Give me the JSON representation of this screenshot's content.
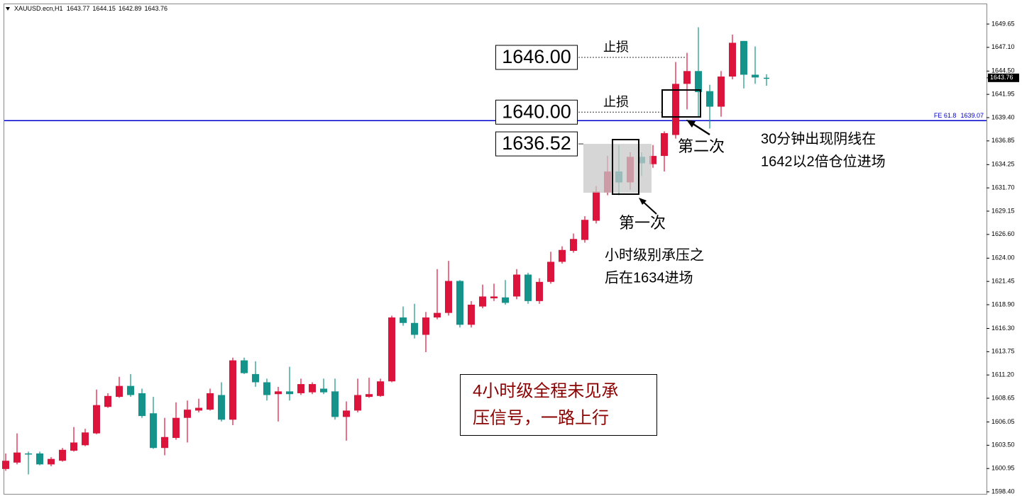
{
  "chart_data": {
    "type": "candlestick",
    "symbol": "XAUUSD.ecn,H1",
    "open": [
      1600.9,
      1601.6,
      1602.6,
      1602.6,
      1601.4,
      1601.8,
      1602.9,
      1603.5,
      1604.8,
      1607.7,
      1608.8,
      1610.0,
      1609.2,
      1607.0,
      1603.2,
      1604.3,
      1606.5,
      1607.3,
      1607.4,
      1609.0,
      1606.3,
      1612.8,
      1611.3,
      1610.4,
      1609.1,
      1609.4,
      1609.2,
      1609.3,
      1609.7,
      1609.4,
      1606.6,
      1607.3,
      1608.8,
      1608.9,
      1610.5,
      1617.5,
      1616.9,
      1615.6,
      1617.5,
      1618.0,
      1621.5,
      1616.7,
      1618.7,
      1619.6,
      1619.7,
      1619.8,
      1622.2,
      1619.3,
      1621.4,
      1623.6,
      1624.8,
      1626.0,
      1628.1,
      1631.2,
      1633.5,
      1632.3,
      1635.1,
      1634.3,
      1635.2,
      1637.5,
      1643.1,
      1644.5,
      1642.3,
      1640.6,
      1643.9,
      1647.8,
      1644.1,
      1643.77
    ],
    "high": [
      1602.6,
      1604.8,
      1602.8,
      1602.8,
      1602.2,
      1603.2,
      1605.5,
      1605.3,
      1609.6,
      1609.2,
      1611.0,
      1611.3,
      1609.7,
      1608.8,
      1606.5,
      1608.2,
      1608.4,
      1608.6,
      1609.7,
      1610.4,
      1613.1,
      1613.1,
      1612.7,
      1610.8,
      1609.9,
      1612.1,
      1610.8,
      1610.4,
      1610.8,
      1610.8,
      1608.3,
      1610.8,
      1610.9,
      1610.8,
      1617.7,
      1618.7,
      1619.0,
      1618.1,
      1622.8,
      1623.7,
      1621.6,
      1619.3,
      1621.1,
      1621.2,
      1621.6,
      1622.8,
      1622.4,
      1621.8,
      1624.7,
      1625.3,
      1626.7,
      1628.6,
      1631.9,
      1635.2,
      1636.4,
      1635.6,
      1635.6,
      1636.4,
      1637.9,
      1645.5,
      1646.5,
      1649.3,
      1643.0,
      1644.5,
      1648.5,
      1647.8,
      1647.2,
      1644.15
    ],
    "low": [
      1600.7,
      1601.4,
      1600.3,
      1601.3,
      1601.2,
      1601.7,
      1602.8,
      1603.4,
      1604.7,
      1607.6,
      1608.7,
      1608.8,
      1606.5,
      1603.1,
      1602.4,
      1604.1,
      1603.8,
      1607.1,
      1607.3,
      1606.1,
      1605.7,
      1611.3,
      1609.9,
      1608.4,
      1606.1,
      1608.4,
      1609.0,
      1609.1,
      1609.1,
      1606.3,
      1604.0,
      1607.1,
      1608.7,
      1608.8,
      1610.4,
      1616.6,
      1615.2,
      1613.7,
      1617.3,
      1617.7,
      1616.4,
      1616.4,
      1618.5,
      1619.3,
      1618.9,
      1619.5,
      1619.0,
      1619.0,
      1621.2,
      1623.4,
      1624.6,
      1625.7,
      1627.8,
      1630.9,
      1630.9,
      1631.5,
      1633.0,
      1633.9,
      1633.5,
      1637.1,
      1640.3,
      1639.5,
      1638.2,
      1639.5,
      1643.6,
      1642.6,
      1643.1,
      1642.89
    ],
    "close": [
      1601.8,
      1602.7,
      1602.5,
      1601.4,
      1602.0,
      1603.0,
      1603.8,
      1604.9,
      1607.9,
      1608.9,
      1610.0,
      1609.0,
      1606.7,
      1603.2,
      1604.4,
      1606.5,
      1607.4,
      1607.6,
      1609.2,
      1606.3,
      1612.8,
      1611.4,
      1610.4,
      1609.0,
      1609.4,
      1609.1,
      1610.2,
      1610.2,
      1609.3,
      1606.6,
      1607.3,
      1609.0,
      1609.1,
      1610.5,
      1617.5,
      1616.9,
      1615.6,
      1617.5,
      1618.0,
      1621.5,
      1616.7,
      1618.9,
      1619.8,
      1619.8,
      1619.1,
      1622.2,
      1619.3,
      1621.4,
      1623.6,
      1624.9,
      1626.1,
      1628.2,
      1631.3,
      1633.5,
      1632.3,
      1635.1,
      1634.4,
      1635.2,
      1637.7,
      1643.1,
      1644.5,
      1642.2,
      1640.6,
      1643.9,
      1647.6,
      1644.1,
      1643.8,
      1643.76
    ],
    "up_color": "#dc143c",
    "down_color": "#13938a",
    "ylim": [
      1598.17,
      1651.9
    ],
    "yticks": [
      {
        "value": 1598.4,
        "label": "1598.40"
      },
      1600.95,
      {
        "value": 1603.5,
        "label": "1603.50"
      },
      1606.05,
      1608.65,
      {
        "value": 1611.2,
        "label": "1611.20"
      },
      1613.75,
      {
        "value": 1616.3,
        "label": "1616.30"
      },
      {
        "value": 1618.9,
        "label": "1618.90"
      },
      1621.45,
      {
        "value": 1624,
        "label": "1624.00"
      },
      {
        "value": 1626.6,
        "label": "1626.60"
      },
      1629.15,
      {
        "value": 1631.7,
        "label": "1631.70"
      },
      1634.25,
      1636.85,
      {
        "value": 1639.4,
        "label": "1639.40"
      },
      1641.95,
      {
        "value": 1644.5,
        "label": "1644.50"
      },
      {
        "value": 1647.1,
        "label": "1647.10"
      },
      1649.65
    ],
    "hline": {
      "label": "FE 61.8",
      "value": 1639.07,
      "color": "#0000cd"
    },
    "price_boxes": [
      {
        "value": 1646,
        "label": "1646.00"
      },
      {
        "value": 1640,
        "label": "1640.00"
      },
      {
        "value": 1636.52,
        "label": "1636.52"
      }
    ],
    "stop_labels": [
      "止损",
      "止损"
    ],
    "notes": {
      "first": "第一次",
      "second": "第二次",
      "first_detail": [
        "小时级别承压之",
        "后在1634进场"
      ],
      "second_detail": [
        "30分钟出现阴线在",
        "1642以2倍仓位进场"
      ],
      "summary": [
        "4小时级全程未见承",
        "压信号，一路上行"
      ]
    }
  }
}
